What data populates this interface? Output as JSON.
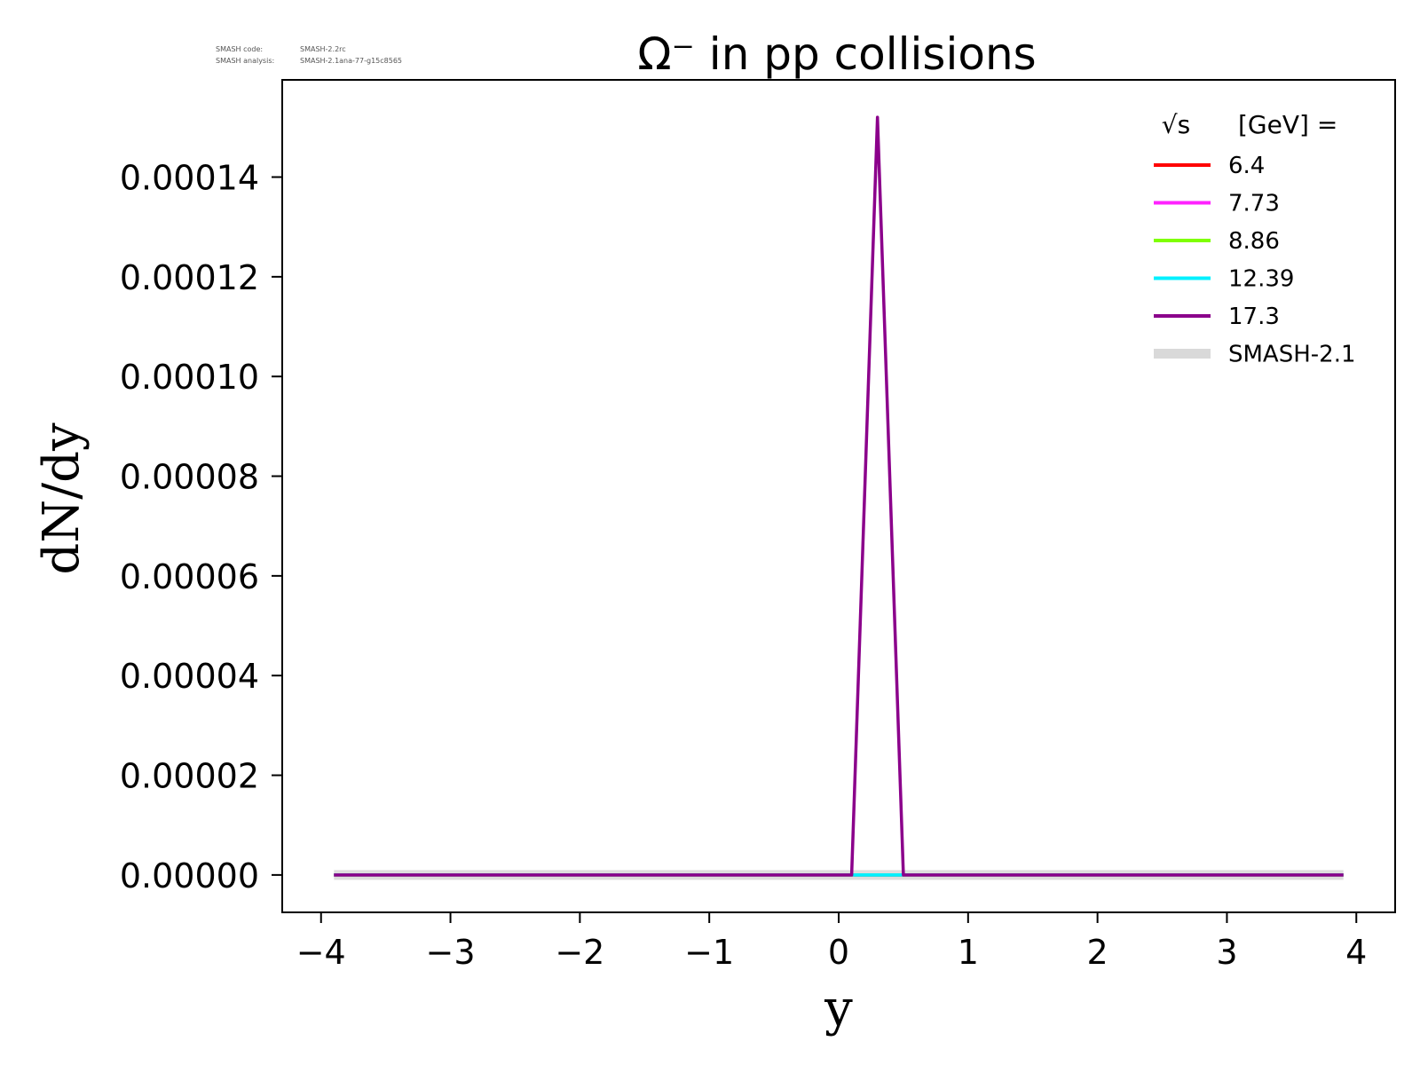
{
  "meta": {
    "code_label": "SMASH code:",
    "code_value": "SMASH-2.2rc",
    "analysis_label": "SMASH analysis:",
    "analysis_value": "SMASH-2.1ana-77-g15c8565"
  },
  "chart_data": {
    "type": "line",
    "title": "Ω⁻ in pp collisions",
    "xlabel": "y",
    "ylabel": "dN/dy",
    "xlim": [
      -4.3,
      4.3
    ],
    "ylim": [
      -7.5e-06,
      0.0001595
    ],
    "xticks": [
      -4,
      -3,
      -2,
      -1,
      0,
      1,
      2,
      3,
      4
    ],
    "xtick_labels": [
      "−4",
      "−3",
      "−2",
      "−1",
      "0",
      "1",
      "2",
      "3",
      "4"
    ],
    "yticks": [
      0,
      2e-05,
      4e-05,
      6e-05,
      8e-05,
      0.0001,
      0.00012,
      0.00014
    ],
    "ytick_labels": [
      "0.00000",
      "0.00002",
      "0.00004",
      "0.00006",
      "0.00008",
      "0.00010",
      "0.00012",
      "0.00014"
    ],
    "grid": false,
    "legend": {
      "title_sqrt": "√s",
      "title_rest": "[GeV] =",
      "placement": "top-right"
    },
    "series": [
      {
        "name": "SMASH-2.1",
        "color": "#d9d9d9",
        "style": "band",
        "x": [
          -3.9,
          0.1,
          0.3,
          0.5,
          3.9
        ],
        "values": [
          0,
          0,
          0,
          0,
          0
        ]
      },
      {
        "name": "6.4",
        "color": "#ff0000",
        "x": [
          -3.9,
          0.1,
          0.3,
          0.5,
          3.9
        ],
        "values": [
          0,
          0,
          0,
          0,
          0
        ]
      },
      {
        "name": "7.73",
        "color": "#ff22ff",
        "x": [
          -3.9,
          0.1,
          0.3,
          0.5,
          3.9
        ],
        "values": [
          0,
          0,
          0,
          0,
          0
        ]
      },
      {
        "name": "8.86",
        "color": "#7fff00",
        "x": [
          -3.9,
          0.1,
          0.3,
          0.5,
          3.9
        ],
        "values": [
          0,
          0,
          0,
          0,
          0
        ]
      },
      {
        "name": "12.39",
        "color": "#00f0ff",
        "x": [
          -3.9,
          0.1,
          0.3,
          0.5,
          3.9
        ],
        "values": [
          0,
          0,
          0,
          0,
          0
        ]
      },
      {
        "name": "17.3",
        "color": "#8b008b",
        "x": [
          -3.9,
          0.1,
          0.3,
          0.5,
          3.9
        ],
        "values": [
          0,
          0,
          0.000152,
          0,
          0
        ]
      }
    ]
  }
}
